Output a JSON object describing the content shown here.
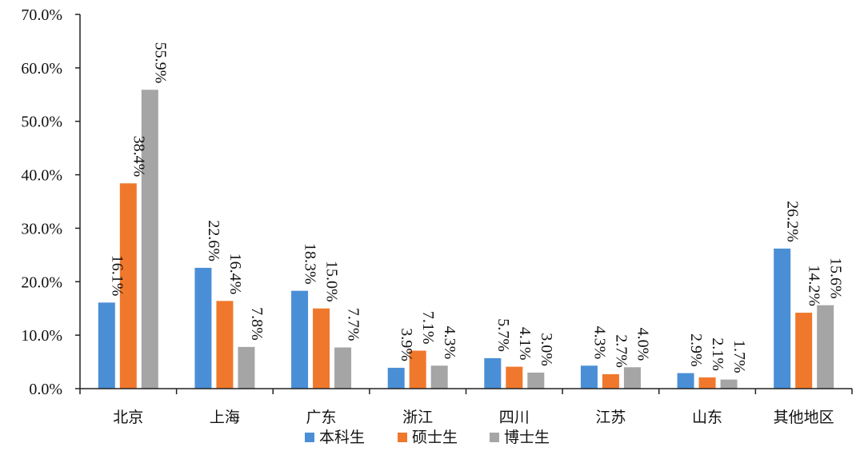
{
  "chart_data": {
    "type": "bar",
    "categories": [
      "北京",
      "上海",
      "广东",
      "浙江",
      "四川",
      "江苏",
      "山东",
      "其他地区"
    ],
    "series": [
      {
        "name": "本科生",
        "color": "#4a8fd6",
        "values": [
          16.1,
          22.6,
          18.3,
          3.9,
          5.7,
          4.3,
          2.9,
          26.2
        ]
      },
      {
        "name": "硕士生",
        "color": "#f0782c",
        "values": [
          38.4,
          16.4,
          15.0,
          7.1,
          4.1,
          2.7,
          2.1,
          14.2
        ]
      },
      {
        "name": "博士生",
        "color": "#a5a5a5",
        "values": [
          55.9,
          7.8,
          7.7,
          4.3,
          3.0,
          4.0,
          1.7,
          15.6
        ]
      }
    ],
    "ylim": [
      0,
      70
    ],
    "yticks": [
      "0.0%",
      "10.0%",
      "20.0%",
      "30.0%",
      "40.0%",
      "50.0%",
      "60.0%",
      "70.0%"
    ],
    "data_labels": [
      [
        "16.1%",
        "22.6%",
        "18.3%",
        "3.9%",
        "5.7%",
        "4.3%",
        "2.9%",
        "26.2%"
      ],
      [
        "38.4%",
        "16.4%",
        "15.0%",
        "7.1%",
        "4.1%",
        "2.7%",
        "2.1%",
        "14.2%"
      ],
      [
        "55.9%",
        "7.8%",
        "7.7%",
        "4.3%",
        "3.0%",
        "4.0%",
        "1.7%",
        "15.6%"
      ]
    ],
    "legend": [
      "本科生",
      "硕士生",
      "博士生"
    ],
    "legend_position": "bottom",
    "grid": false
  }
}
